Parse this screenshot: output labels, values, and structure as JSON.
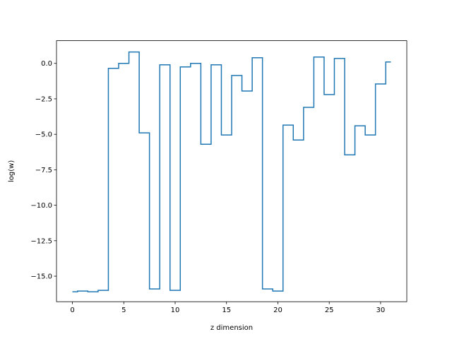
{
  "chart_data": {
    "type": "line",
    "drawstyle": "steps-mid",
    "xlabel": "z dimension",
    "ylabel": "log(w)",
    "xlim": [
      -1.55,
      32.55
    ],
    "ylim": [
      -16.8,
      1.6
    ],
    "xticks": [
      0,
      5,
      10,
      15,
      20,
      25,
      30
    ],
    "xtick_labels": [
      "0",
      "5",
      "10",
      "15",
      "20",
      "25",
      "30"
    ],
    "yticks": [
      0.0,
      -2.5,
      -5.0,
      -7.5,
      -10.0,
      -12.5,
      -15.0
    ],
    "ytick_labels": [
      "0.0",
      "−2.5",
      "−5.0",
      "−7.5",
      "−10.0",
      "−12.5",
      "−15.0"
    ],
    "grid": false,
    "series": [
      {
        "color": "#1f77b4",
        "x": [
          0,
          1,
          2,
          3,
          4,
          5,
          6,
          7,
          8,
          9,
          10,
          11,
          12,
          13,
          14,
          15,
          16,
          17,
          18,
          19,
          20,
          21,
          22,
          23,
          24,
          25,
          26,
          27,
          28,
          29,
          30,
          31
        ],
        "y": [
          -16.1,
          -16.05,
          -16.1,
          -16.0,
          -0.35,
          0.0,
          0.8,
          -4.9,
          -15.9,
          -0.1,
          -16.0,
          -0.25,
          0.0,
          -5.7,
          -0.1,
          -5.05,
          -0.85,
          -1.95,
          0.4,
          -15.9,
          -16.05,
          -4.35,
          -5.4,
          -3.1,
          0.45,
          -2.2,
          0.35,
          -6.45,
          -4.4,
          -5.05,
          -1.45,
          0.1
        ]
      }
    ]
  }
}
